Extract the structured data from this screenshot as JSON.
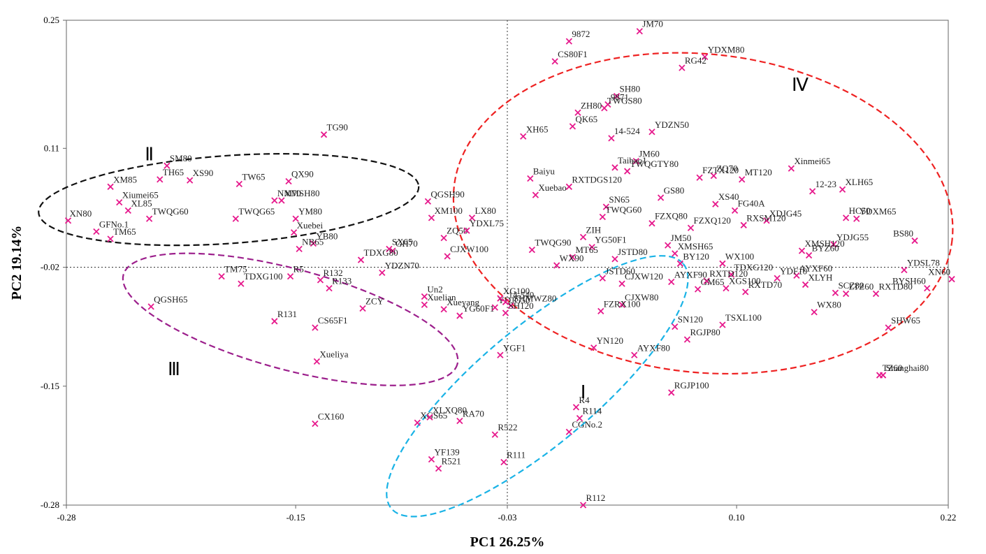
{
  "chart_data": {
    "type": "scatter",
    "xlabel": "PC1 26.25%",
    "ylabel": "PC2 19.14%",
    "xlim": [
      -0.28,
      0.22
    ],
    "ylim": [
      -0.28,
      0.25
    ],
    "xticks": [
      -0.28,
      -0.15,
      -0.03,
      0.1,
      0.22
    ],
    "xtick_labels": [
      "-0.28",
      "-0.15",
      "-0.03",
      "0.10",
      "0.22"
    ],
    "yticks": [
      0.25,
      0.11,
      -0.02,
      -0.15,
      -0.28
    ],
    "ytick_labels": [
      "0.25",
      "0.11",
      "-0.02",
      "-0.15",
      "-0.28"
    ],
    "reference_lines": {
      "x": -0.03,
      "y": -0.02,
      "style": "dotted"
    },
    "marker": {
      "shape": "x",
      "color": "#e6198c"
    },
    "group_colors": {
      "I": "#1ab3e6",
      "II": "#111111",
      "III": "#9c1f8c",
      "IV": "#ee2222"
    },
    "groups": [
      {
        "label": "Ⅰ",
        "color": "#1ab3e6",
        "cx": -0.013,
        "cy": -0.15,
        "rx": 0.108,
        "ry": 0.064,
        "angle": 40,
        "label_at": [
          0.013,
          -0.163
        ]
      },
      {
        "label": "Ⅱ",
        "color": "#111111",
        "cx": -0.188,
        "cy": 0.054,
        "rx": 0.108,
        "ry": 0.048,
        "angle": 4,
        "label_at": [
          -0.233,
          0.097
        ]
      },
      {
        "label": "Ⅲ",
        "color": "#9c1f8c",
        "cx": -0.153,
        "cy": -0.077,
        "rx": 0.098,
        "ry": 0.055,
        "angle": -15,
        "label_at": [
          -0.219,
          -0.138
        ]
      },
      {
        "label": "Ⅳ",
        "color": "#ee2222",
        "cx": 0.081,
        "cy": 0.039,
        "rx": 0.142,
        "ry": 0.174,
        "angle": -6,
        "label_at": [
          0.136,
          0.173
        ]
      }
    ],
    "points": [
      {
        "label": "JM70",
        "x": 0.045,
        "y": 0.238
      },
      {
        "label": "9872",
        "x": 0.005,
        "y": 0.227
      },
      {
        "label": "CS80F1",
        "x": -0.003,
        "y": 0.205
      },
      {
        "label": "YDXM80",
        "x": 0.082,
        "y": 0.21
      },
      {
        "label": "RG42",
        "x": 0.069,
        "y": 0.198
      },
      {
        "label": "SH80",
        "x": 0.032,
        "y": 0.167
      },
      {
        "label": "9871",
        "x": 0.027,
        "y": 0.158
      },
      {
        "label": "TWGS80",
        "x": 0.025,
        "y": 0.154
      },
      {
        "label": "ZH80",
        "x": 0.01,
        "y": 0.149
      },
      {
        "label": "QK65",
        "x": 0.007,
        "y": 0.134
      },
      {
        "label": "XH65",
        "x": -0.021,
        "y": 0.123
      },
      {
        "label": "14-524",
        "x": 0.029,
        "y": 0.121
      },
      {
        "label": "YDZN50",
        "x": 0.052,
        "y": 0.128
      },
      {
        "label": "TG90",
        "x": -0.134,
        "y": 0.125
      },
      {
        "label": "JM60",
        "x": 0.043,
        "y": 0.096
      },
      {
        "label": "Taibao1",
        "x": 0.031,
        "y": 0.089
      },
      {
        "label": "TWQGTY80",
        "x": 0.038,
        "y": 0.085
      },
      {
        "label": "ZQ70",
        "x": 0.087,
        "y": 0.08
      },
      {
        "label": "FZTX120",
        "x": 0.079,
        "y": 0.078
      },
      {
        "label": "Xinmei65",
        "x": 0.131,
        "y": 0.088
      },
      {
        "label": "MT120",
        "x": 0.103,
        "y": 0.076
      },
      {
        "label": "12-23",
        "x": 0.143,
        "y": 0.063
      },
      {
        "label": "XLH65",
        "x": 0.16,
        "y": 0.065
      },
      {
        "label": "Baiyu",
        "x": -0.017,
        "y": 0.077
      },
      {
        "label": "RXTDGS120",
        "x": 0.005,
        "y": 0.068
      },
      {
        "label": "Xuebao",
        "x": -0.014,
        "y": 0.059
      },
      {
        "label": "GS80",
        "x": 0.057,
        "y": 0.056
      },
      {
        "label": "SN65",
        "x": 0.026,
        "y": 0.046
      },
      {
        "label": "XS40",
        "x": 0.088,
        "y": 0.049
      },
      {
        "label": "FG40A",
        "x": 0.099,
        "y": 0.042
      },
      {
        "label": "TWQG60",
        "x": 0.024,
        "y": 0.035
      },
      {
        "label": "FZXQ80",
        "x": 0.052,
        "y": 0.028
      },
      {
        "label": "FZXQ120",
        "x": 0.074,
        "y": 0.023
      },
      {
        "label": "XDJG45",
        "x": 0.117,
        "y": 0.031
      },
      {
        "label": "RXSM120",
        "x": 0.104,
        "y": 0.026
      },
      {
        "label": "HC50",
        "x": 0.162,
        "y": 0.034
      },
      {
        "label": "YDXM65",
        "x": 0.168,
        "y": 0.033
      },
      {
        "label": "ZIH",
        "x": 0.013,
        "y": 0.013
      },
      {
        "label": "YG50F1",
        "x": 0.018,
        "y": 0.002
      },
      {
        "label": "MT65",
        "x": 0.007,
        "y": -0.009
      },
      {
        "label": "JM50",
        "x": 0.061,
        "y": 0.004
      },
      {
        "label": "BS80",
        "x": 0.201,
        "y": 0.009
      },
      {
        "label": "YDJG55",
        "x": 0.155,
        "y": 0.005
      },
      {
        "label": "XMSH120",
        "x": 0.137,
        "y": -0.002
      },
      {
        "label": "BYZ60",
        "x": 0.141,
        "y": -0.007
      },
      {
        "label": "TWQG90",
        "x": -0.016,
        "y": -0.001
      },
      {
        "label": "WX90",
        "x": -0.002,
        "y": -0.018
      },
      {
        "label": "JSTD80",
        "x": 0.031,
        "y": -0.011
      },
      {
        "label": "XMSH65",
        "x": 0.065,
        "y": -0.005
      },
      {
        "label": "BY120",
        "x": 0.068,
        "y": -0.016
      },
      {
        "label": "WX100",
        "x": 0.092,
        "y": -0.016
      },
      {
        "label": "TDXG120",
        "x": 0.097,
        "y": -0.028
      },
      {
        "label": "AYXF60",
        "x": 0.134,
        "y": -0.029
      },
      {
        "label": "AYXF90",
        "x": 0.063,
        "y": -0.036
      },
      {
        "label": "JSTD60",
        "x": 0.024,
        "y": -0.032
      },
      {
        "label": "CJXW120",
        "x": 0.035,
        "y": -0.038
      },
      {
        "label": "YDSL78",
        "x": 0.195,
        "y": -0.023
      },
      {
        "label": "XN60",
        "x": 0.222,
        "y": -0.033
      },
      {
        "label": "RXTD120",
        "x": 0.083,
        "y": -0.035
      },
      {
        "label": "XGS100",
        "x": 0.094,
        "y": -0.043
      },
      {
        "label": "YDF10",
        "x": 0.123,
        "y": -0.032
      },
      {
        "label": "XLYH",
        "x": 0.139,
        "y": -0.039
      },
      {
        "label": "RXTD70",
        "x": 0.105,
        "y": -0.047
      },
      {
        "label": "GM65",
        "x": 0.078,
        "y": -0.044
      },
      {
        "label": "SCZ80",
        "x": 0.156,
        "y": -0.048
      },
      {
        "label": "LTZ60",
        "x": 0.162,
        "y": -0.049
      },
      {
        "label": "RXTD80",
        "x": 0.179,
        "y": -0.049
      },
      {
        "label": "BYSH60",
        "x": 0.208,
        "y": -0.043
      },
      {
        "label": "CJXW80",
        "x": 0.035,
        "y": -0.061
      },
      {
        "label": "FZRX100",
        "x": 0.023,
        "y": -0.068
      },
      {
        "label": "SHW65",
        "x": 0.186,
        "y": -0.086
      },
      {
        "label": "WX80",
        "x": 0.144,
        "y": -0.069
      },
      {
        "label": "SN120",
        "x": 0.065,
        "y": -0.085
      },
      {
        "label": "RGJP80",
        "x": 0.072,
        "y": -0.099
      },
      {
        "label": "TSXL100",
        "x": 0.092,
        "y": -0.083
      },
      {
        "label": "YN120",
        "x": 0.019,
        "y": -0.108
      },
      {
        "label": "AYXF80",
        "x": 0.042,
        "y": -0.116
      },
      {
        "label": "RGJP100",
        "x": 0.063,
        "y": -0.157
      },
      {
        "label": "TZ60",
        "x": 0.181,
        "y": -0.138
      },
      {
        "label": "Shanghai80",
        "x": 0.183,
        "y": -0.138
      },
      {
        "label": "SM80",
        "x": -0.223,
        "y": 0.091
      },
      {
        "label": "TH65",
        "x": -0.227,
        "y": 0.076
      },
      {
        "label": "XS90",
        "x": -0.21,
        "y": 0.075
      },
      {
        "label": "TW65",
        "x": -0.182,
        "y": 0.071
      },
      {
        "label": "QX90",
        "x": -0.154,
        "y": 0.074
      },
      {
        "label": "XM85",
        "x": -0.255,
        "y": 0.068
      },
      {
        "label": "NM70",
        "x": -0.162,
        "y": 0.053
      },
      {
        "label": "XMSH80",
        "x": -0.158,
        "y": 0.053
      },
      {
        "label": "Xiumei65",
        "x": -0.25,
        "y": 0.051
      },
      {
        "label": "XL85",
        "x": -0.245,
        "y": 0.042
      },
      {
        "label": "YM80",
        "x": -0.15,
        "y": 0.033
      },
      {
        "label": "TWQG65",
        "x": -0.184,
        "y": 0.033
      },
      {
        "label": "TWQG60",
        "x": -0.233,
        "y": 0.033
      },
      {
        "label": "XN80",
        "x": -0.279,
        "y": 0.031
      },
      {
        "label": "GFNo.1",
        "x": -0.263,
        "y": 0.019
      },
      {
        "label": "Xuebei",
        "x": -0.151,
        "y": 0.018
      },
      {
        "label": "TM65",
        "x": -0.255,
        "y": 0.011
      },
      {
        "label": "YB80",
        "x": -0.14,
        "y": 0.006
      },
      {
        "label": "NB65",
        "x": -0.148,
        "y": 0.0
      },
      {
        "label": "QGSH90",
        "x": -0.075,
        "y": 0.052
      },
      {
        "label": "XM100",
        "x": -0.073,
        "y": 0.034
      },
      {
        "label": "LX80",
        "x": -0.05,
        "y": 0.034
      },
      {
        "label": "ZQ50",
        "x": -0.066,
        "y": 0.012
      },
      {
        "label": "YDXL75",
        "x": -0.053,
        "y": 0.02
      },
      {
        "label": "GH70",
        "x": -0.095,
        "y": -0.002
      },
      {
        "label": "SX65",
        "x": -0.097,
        "y": 0.0
      },
      {
        "label": "CJXW100",
        "x": -0.064,
        "y": -0.008
      },
      {
        "label": "TDXG80",
        "x": -0.113,
        "y": -0.012
      },
      {
        "label": "YDZN70",
        "x": -0.101,
        "y": -0.026
      },
      {
        "label": "TM75",
        "x": -0.192,
        "y": -0.03
      },
      {
        "label": "R5",
        "x": -0.153,
        "y": -0.03
      },
      {
        "label": "TDXG100",
        "x": -0.181,
        "y": -0.038
      },
      {
        "label": "R132",
        "x": -0.136,
        "y": -0.034
      },
      {
        "label": "R133",
        "x": -0.131,
        "y": -0.043
      },
      {
        "label": "QGSH65",
        "x": -0.232,
        "y": -0.063
      },
      {
        "label": "R131",
        "x": -0.162,
        "y": -0.079
      },
      {
        "label": "ZCY",
        "x": -0.112,
        "y": -0.065
      },
      {
        "label": "CS65F1",
        "x": -0.139,
        "y": -0.086
      },
      {
        "label": "Xueliya",
        "x": -0.138,
        "y": -0.123
      },
      {
        "label": "Un2",
        "x": -0.077,
        "y": -0.052
      },
      {
        "label": "Xuelian",
        "x": -0.077,
        "y": -0.061
      },
      {
        "label": "Xueyang",
        "x": -0.066,
        "y": -0.066
      },
      {
        "label": "YG60F1",
        "x": -0.057,
        "y": -0.073
      },
      {
        "label": "YDJG50",
        "x": -0.037,
        "y": -0.064
      },
      {
        "label": "XG100",
        "x": -0.034,
        "y": -0.054
      },
      {
        "label": "14-540",
        "x": -0.031,
        "y": -0.058
      },
      {
        "label": "SHMWZ80",
        "x": -0.028,
        "y": -0.062
      },
      {
        "label": "SH120",
        "x": -0.031,
        "y": -0.07
      },
      {
        "label": "YGF1",
        "x": -0.034,
        "y": -0.116
      },
      {
        "label": "CX160",
        "x": -0.139,
        "y": -0.191
      },
      {
        "label": "XGS65",
        "x": -0.081,
        "y": -0.19
      },
      {
        "label": "XLXQ80",
        "x": -0.074,
        "y": -0.184
      },
      {
        "label": "RA70",
        "x": -0.057,
        "y": -0.188
      },
      {
        "label": "R522",
        "x": -0.037,
        "y": -0.203
      },
      {
        "label": "YF139",
        "x": -0.073,
        "y": -0.23
      },
      {
        "label": "R521",
        "x": -0.069,
        "y": -0.24
      },
      {
        "label": "R111",
        "x": -0.032,
        "y": -0.233
      },
      {
        "label": "R4",
        "x": 0.009,
        "y": -0.173
      },
      {
        "label": "R114",
        "x": 0.011,
        "y": -0.185
      },
      {
        "label": "CGNo.2",
        "x": 0.005,
        "y": -0.2
      },
      {
        "label": "R112",
        "x": 0.013,
        "y": -0.28
      }
    ]
  }
}
